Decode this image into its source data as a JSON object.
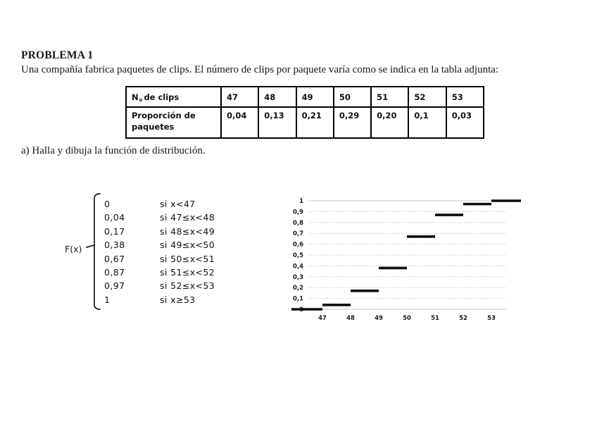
{
  "document": {
    "title": "PROBLEMA 1",
    "intro": "Una compañía fabrica paquetes de clips. El número de clips por paquete varía como se indica en la tabla adjunta:",
    "question_a": "a) Halla y dibuja la función de distribución."
  },
  "table": {
    "clips_label": {
      "prefix": "N",
      "ordinal": "o",
      "rest": "de clips"
    },
    "clips_values": [
      "47",
      "48",
      "49",
      "50",
      "51",
      "52",
      "53"
    ],
    "proportion_label": "Proporción de paquetes",
    "proportion_values": [
      "0,04",
      "0,13",
      "0,21",
      "0,29",
      "0,20",
      "0,1",
      "0,03"
    ]
  },
  "distribution_function": {
    "name": "F(x)",
    "pieces": [
      {
        "value": "0",
        "condition": "si x<47"
      },
      {
        "value": "0,04",
        "condition": "si 47≤x<48"
      },
      {
        "value": "0,17",
        "condition": "si 48≤x<49"
      },
      {
        "value": "0,38",
        "condition": "si 49≤x<50"
      },
      {
        "value": "0,67",
        "condition": "si 50≤x<51"
      },
      {
        "value": "0,87",
        "condition": "si 51≤x<52"
      },
      {
        "value": "0,97",
        "condition": "si 52≤x<53"
      },
      {
        "value": "1",
        "condition": "si x≥53"
      }
    ]
  },
  "chart_data": {
    "type": "line",
    "subtype": "step-cdf",
    "title": "",
    "xlabel": "",
    "ylabel": "",
    "x_ticks": [
      47,
      48,
      49,
      50,
      51,
      52,
      53
    ],
    "y_ticks": [
      {
        "label": "1",
        "value": 1.0
      },
      {
        "label": "0,9",
        "value": 0.9
      },
      {
        "label": "0,8",
        "value": 0.8
      },
      {
        "label": "0,7",
        "value": 0.7
      },
      {
        "label": "0,6",
        "value": 0.6
      },
      {
        "label": "0,5",
        "value": 0.5
      },
      {
        "label": "0,4",
        "value": 0.4
      },
      {
        "label": "0,3",
        "value": 0.3
      },
      {
        "label": "0,2",
        "value": 0.2
      },
      {
        "label": "0,1",
        "value": 0.1
      },
      {
        "label": "0",
        "value": 0.0
      }
    ],
    "segments": [
      {
        "from": 45.9,
        "to": 47,
        "value": 0.0
      },
      {
        "from": 47,
        "to": 48,
        "value": 0.04
      },
      {
        "from": 48,
        "to": 49,
        "value": 0.17
      },
      {
        "from": 49,
        "to": 50,
        "value": 0.38
      },
      {
        "from": 50,
        "to": 51,
        "value": 0.67
      },
      {
        "from": 51,
        "to": 52,
        "value": 0.87
      },
      {
        "from": 52,
        "to": 53,
        "value": 0.97
      },
      {
        "from": 53,
        "to": 54.05,
        "value": 1.0
      }
    ],
    "xlim": [
      45.75,
      54.05
    ],
    "ylim": [
      0,
      1
    ],
    "grid": "horizontal-dotted",
    "legend": "none",
    "line_color": "#0d0d0d",
    "grid_color": "#c8c8c8"
  }
}
